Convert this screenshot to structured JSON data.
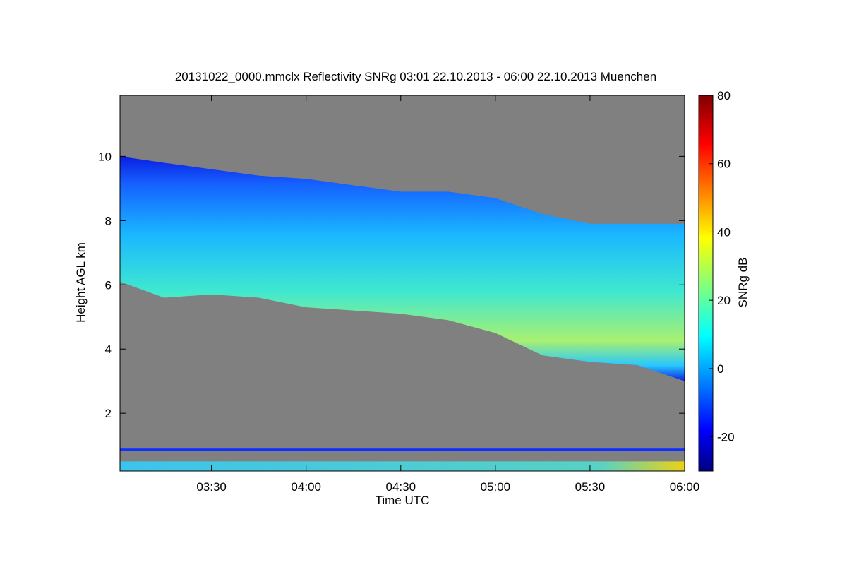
{
  "chart_data": {
    "type": "heatmap",
    "title": "20131022_0000.mmclx Reflectivity SNRg   03:01 22.10.2013 - 06:00 22.10.2013 Muenchen",
    "xlabel": "Time UTC",
    "ylabel": "Height AGL km",
    "colorbar_label": "SNRg dB",
    "x_range": [
      "03:01",
      "06:00"
    ],
    "xlim_minutes_utc": [
      181,
      360
    ],
    "ylim": [
      0.2,
      11.9
    ],
    "x_ticks": [
      {
        "minute": 210,
        "label": "03:30"
      },
      {
        "minute": 240,
        "label": "04:00"
      },
      {
        "minute": 270,
        "label": "04:30"
      },
      {
        "minute": 300,
        "label": "05:00"
      },
      {
        "minute": 330,
        "label": "05:30"
      },
      {
        "minute": 360,
        "label": "06:00"
      }
    ],
    "y_ticks": [
      {
        "value": 2,
        "label": "2"
      },
      {
        "value": 4,
        "label": "4"
      },
      {
        "value": 6,
        "label": "6"
      },
      {
        "value": 8,
        "label": "8"
      },
      {
        "value": 10,
        "label": "10"
      }
    ],
    "colorbar": {
      "range": [
        -30,
        80
      ],
      "ticks": [
        {
          "value": -20,
          "label": "-20"
        },
        {
          "value": 0,
          "label": "0"
        },
        {
          "value": 20,
          "label": "20"
        },
        {
          "value": 40,
          "label": "40"
        },
        {
          "value": 60,
          "label": "60"
        },
        {
          "value": 80,
          "label": "80"
        }
      ],
      "colormap": "jet"
    },
    "background_color": "#808080",
    "cloud_layer": {
      "top_km": [
        [
          181,
          10.0
        ],
        [
          195,
          9.8
        ],
        [
          210,
          9.6
        ],
        [
          225,
          9.4
        ],
        [
          240,
          9.3
        ],
        [
          255,
          9.1
        ],
        [
          270,
          8.9
        ],
        [
          285,
          8.9
        ],
        [
          300,
          8.7
        ],
        [
          315,
          8.2
        ],
        [
          330,
          7.9
        ],
        [
          345,
          7.9
        ],
        [
          360,
          7.9
        ]
      ],
      "base_km": [
        [
          181,
          6.1
        ],
        [
          195,
          5.6
        ],
        [
          210,
          5.7
        ],
        [
          225,
          5.6
        ],
        [
          240,
          5.3
        ],
        [
          255,
          5.2
        ],
        [
          270,
          5.1
        ],
        [
          285,
          4.9
        ],
        [
          300,
          4.5
        ],
        [
          315,
          3.8
        ],
        [
          330,
          3.6
        ],
        [
          345,
          3.5
        ],
        [
          360,
          3.0
        ]
      ],
      "peak_snr_db": 35
    }
  }
}
